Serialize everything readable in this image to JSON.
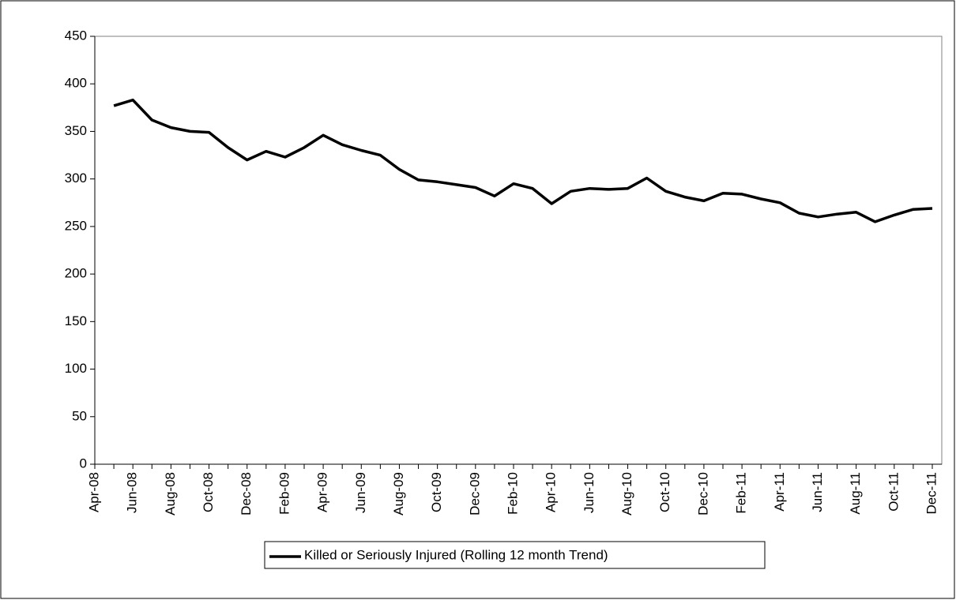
{
  "chart_data": {
    "type": "line",
    "categories": [
      "Apr-08",
      null,
      "Jun-08",
      null,
      "Aug-08",
      null,
      "Oct-08",
      null,
      "Dec-08",
      null,
      "Feb-09",
      null,
      "Apr-09",
      null,
      "Jun-09",
      null,
      "Aug-09",
      null,
      "Oct-09",
      null,
      "Dec-09",
      null,
      "Feb-10",
      null,
      "Apr-10",
      null,
      "Jun-10",
      null,
      "Aug-10",
      null,
      "Oct-10",
      null,
      "Dec-10",
      null,
      "Feb-11",
      null,
      "Apr-11",
      null,
      "Jun-11",
      null,
      "Aug-11",
      null,
      "Oct-11",
      null,
      "Dec-11"
    ],
    "series": [
      {
        "name": "Killed or Seriously Injured (Rolling 12 month Trend)",
        "color": "#000000",
        "values": [
          null,
          377,
          383,
          362,
          354,
          350,
          349,
          333,
          320,
          329,
          323,
          333,
          346,
          336,
          330,
          325,
          310,
          299,
          297,
          294,
          291,
          282,
          295,
          290,
          274,
          287,
          290,
          289,
          290,
          301,
          287,
          281,
          277,
          285,
          284,
          279,
          275,
          264,
          260,
          263,
          265,
          255,
          262,
          268,
          269
        ]
      }
    ],
    "ylim": [
      0,
      450
    ],
    "yticks": [
      0,
      50,
      100,
      150,
      200,
      250,
      300,
      350,
      400,
      450
    ],
    "grid": false,
    "legend": "bottom"
  }
}
